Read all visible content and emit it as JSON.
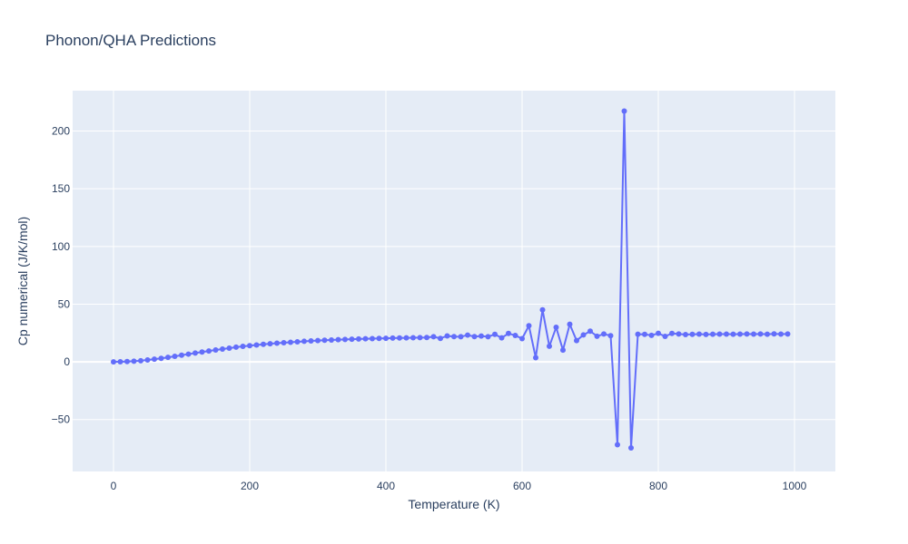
{
  "chart_data": {
    "type": "scatter",
    "mode": "lines+markers",
    "title": "Phonon/QHA Predictions",
    "xlabel": "Temperature (K)",
    "ylabel": "Cp numerical (J/K/mol)",
    "xlim": [
      -60,
      1060
    ],
    "ylim": [
      -95,
      235
    ],
    "xticks": [
      0,
      200,
      400,
      600,
      800,
      1000
    ],
    "yticks": [
      -50,
      0,
      50,
      100,
      150,
      200
    ],
    "ytick_labels": [
      "−50",
      "0",
      "50",
      "100",
      "150",
      "200"
    ],
    "grid": true,
    "series_color": "#636efa",
    "plot_bg": "#e5ecf6",
    "x": [
      0,
      10,
      20,
      30,
      40,
      50,
      60,
      70,
      80,
      90,
      100,
      110,
      120,
      130,
      140,
      150,
      160,
      170,
      180,
      190,
      200,
      210,
      220,
      230,
      240,
      250,
      260,
      270,
      280,
      290,
      300,
      310,
      320,
      330,
      340,
      350,
      360,
      370,
      380,
      390,
      400,
      410,
      420,
      430,
      440,
      450,
      460,
      470,
      480,
      490,
      500,
      510,
      520,
      530,
      540,
      550,
      560,
      570,
      580,
      590,
      600,
      610,
      620,
      630,
      640,
      650,
      660,
      670,
      680,
      690,
      700,
      710,
      720,
      730,
      740,
      750,
      760,
      770,
      780,
      790,
      800,
      810,
      820,
      830,
      840,
      850,
      860,
      870,
      880,
      890,
      900,
      910,
      920,
      930,
      940,
      950,
      960,
      970,
      980,
      990
    ],
    "y": [
      0,
      0.1,
      0.3,
      0.6,
      1.0,
      1.6,
      2.3,
      3.0,
      3.9,
      4.8,
      5.8,
      6.7,
      7.6,
      8.5,
      9.4,
      10.3,
      11.1,
      11.9,
      12.7,
      13.4,
      14.0,
      14.6,
      15.2,
      15.7,
      16.2,
      16.6,
      17.0,
      17.4,
      17.8,
      18.1,
      18.4,
      18.7,
      18.9,
      19.2,
      19.4,
      19.6,
      19.8,
      20.0,
      20.1,
      20.3,
      20.4,
      20.6,
      20.7,
      20.8,
      20.9,
      21.0,
      21.1,
      21.8,
      20.3,
      22.5,
      21.9,
      21.8,
      23.2,
      21.9,
      22.4,
      21.8,
      23.8,
      20.8,
      24.6,
      22.9,
      20.1,
      31.3,
      3.6,
      45.1,
      13.5,
      29.9,
      10.2,
      32.6,
      18.4,
      23.3,
      26.6,
      22.2,
      24.1,
      22.7,
      -71.8,
      217.3,
      -74.6,
      23.9,
      23.8,
      23.0,
      24.7,
      22.1,
      24.6,
      24.1,
      23.6,
      23.8,
      24.0,
      23.7,
      23.9,
      24.0,
      24.0,
      23.9,
      24.0,
      24.1,
      24.0,
      24.1,
      23.9,
      24.2,
      24.0,
      24.1
    ]
  }
}
